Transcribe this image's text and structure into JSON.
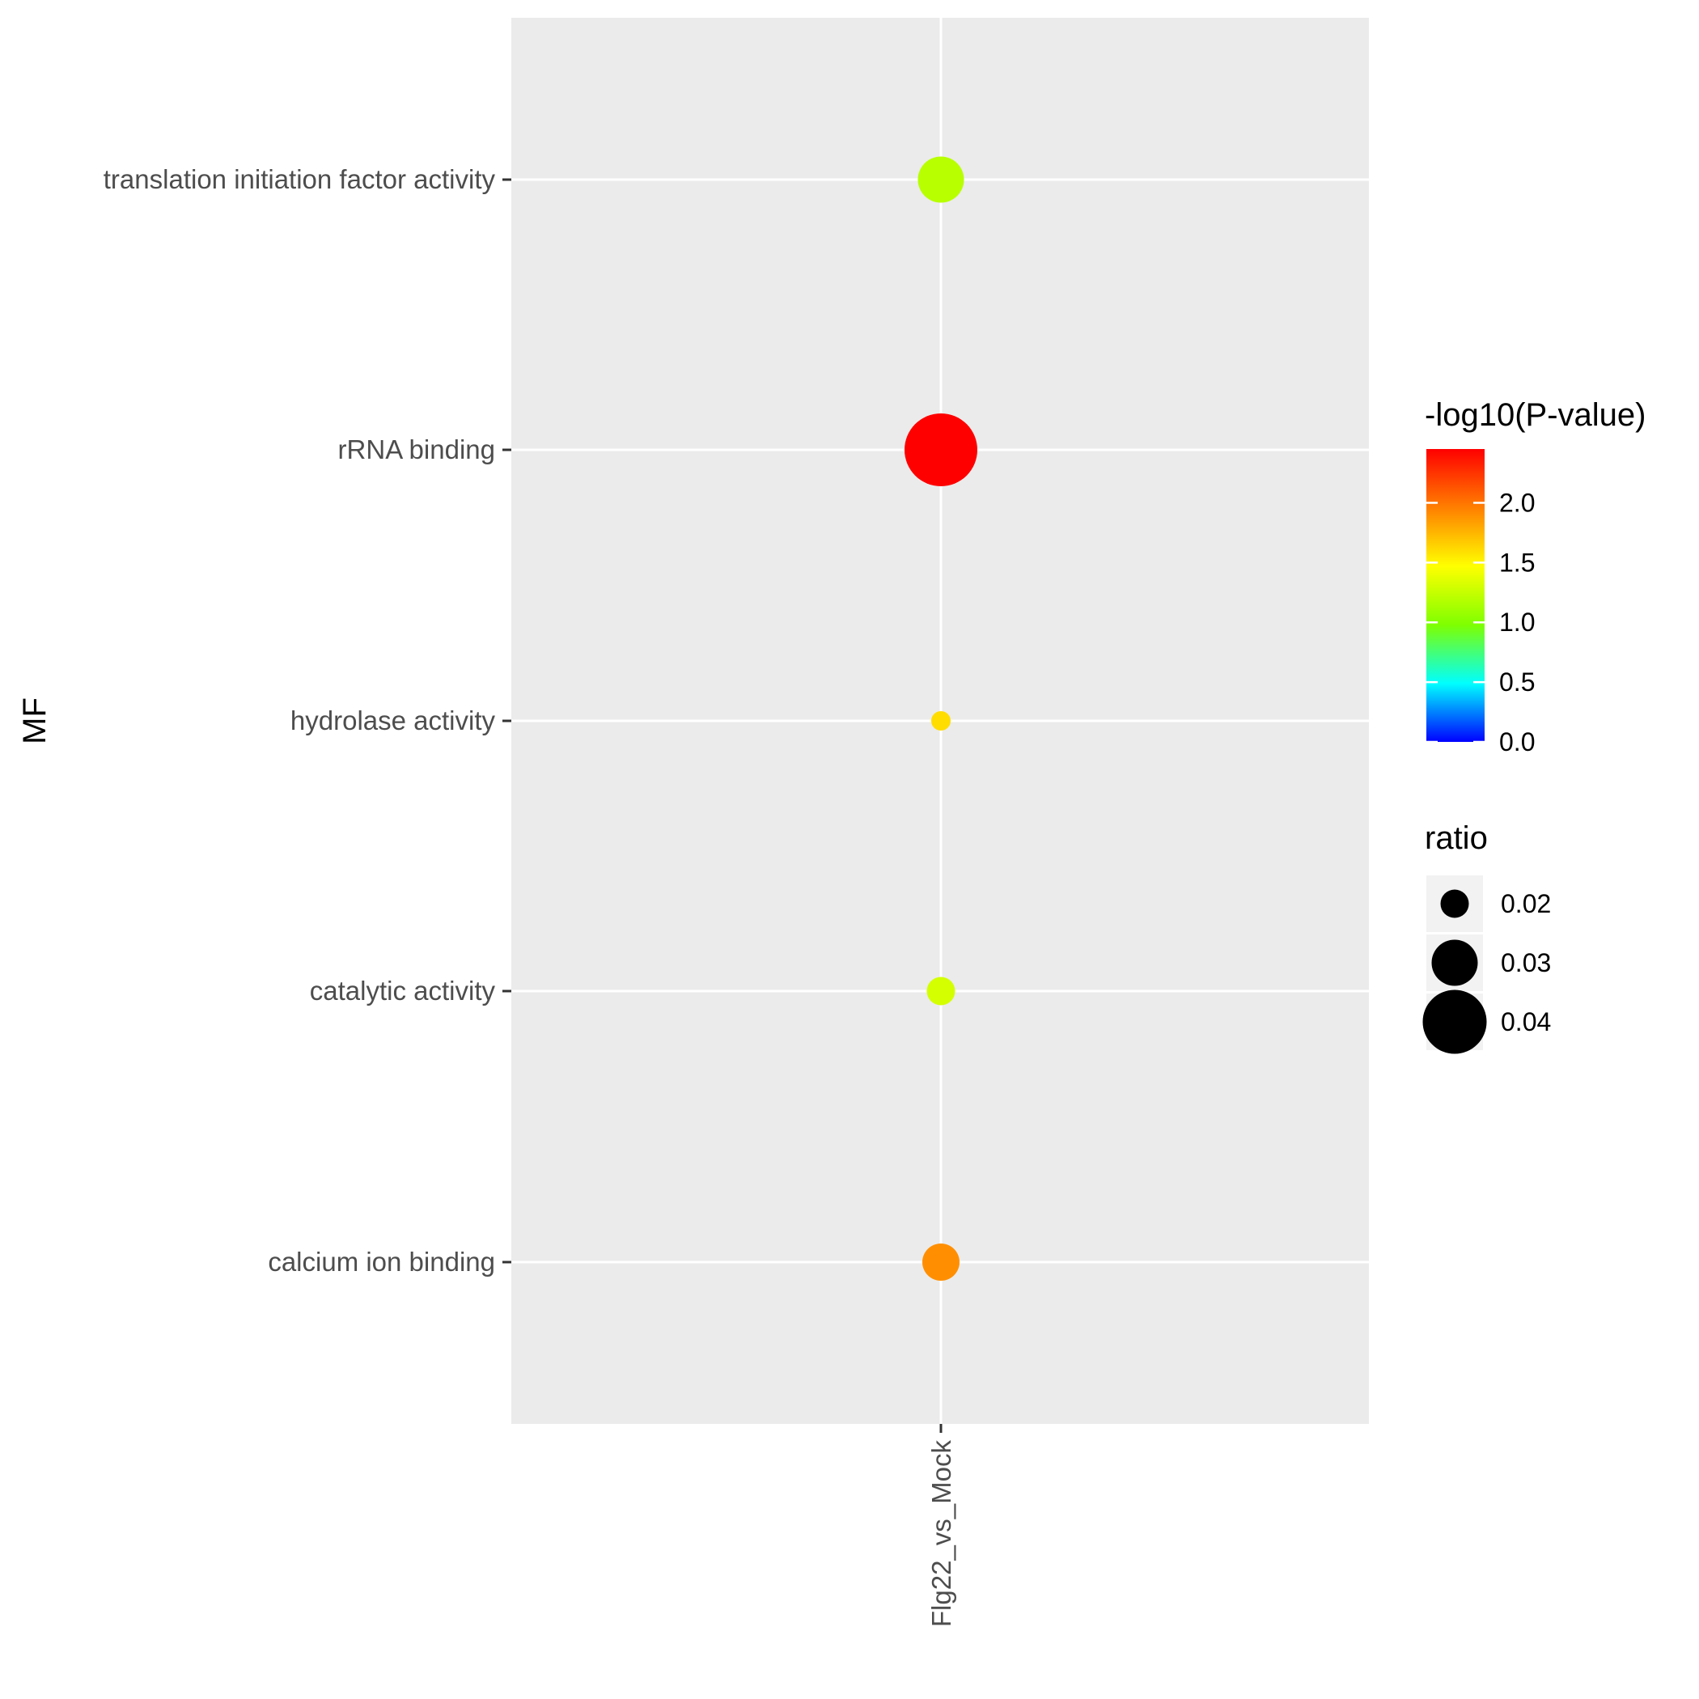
{
  "chart_data": {
    "type": "scatter",
    "xlabel": "",
    "ylabel": "MF",
    "x_categories": [
      "Flg22_vs_Mock"
    ],
    "y_categories": [
      "translation initiation factor activity",
      "rRNA binding",
      "hydrolase activity",
      "catalytic activity",
      "calcium ion binding"
    ],
    "points": [
      {
        "x": "Flg22_vs_Mock",
        "y": "translation initiation factor activity",
        "neg_log10_p": 1.2,
        "ratio": 0.03
      },
      {
        "x": "Flg22_vs_Mock",
        "y": "rRNA binding",
        "neg_log10_p": 2.45,
        "ratio": 0.045
      },
      {
        "x": "Flg22_vs_Mock",
        "y": "hydrolase activity",
        "neg_log10_p": 1.6,
        "ratio": 0.015
      },
      {
        "x": "Flg22_vs_Mock",
        "y": "catalytic activity",
        "neg_log10_p": 1.3,
        "ratio": 0.02
      },
      {
        "x": "Flg22_vs_Mock",
        "y": "calcium ion binding",
        "neg_log10_p": 1.9,
        "ratio": 0.025
      }
    ],
    "color_legend": {
      "title": "-log10(P-value)",
      "ticks": [
        0.0,
        0.5,
        1.0,
        1.5,
        2.0
      ],
      "tick_labels": [
        "0.0",
        "0.5",
        "1.0",
        "1.5",
        "2.0"
      ],
      "range": [
        0,
        2.45
      ],
      "colors": [
        "#0000ff",
        "#00ffff",
        "#7fff00",
        "#ffff00",
        "#ff7f00",
        "#ff0000"
      ]
    },
    "size_legend": {
      "title": "ratio",
      "values": [
        0.02,
        0.03,
        0.04
      ],
      "labels": [
        "0.02",
        "0.03",
        "0.04"
      ]
    },
    "panel_background": "#ebebeb",
    "grid": true,
    "legend_position": "right"
  }
}
